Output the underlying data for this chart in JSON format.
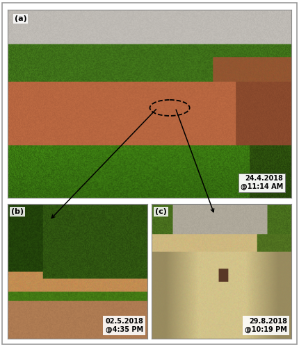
{
  "label_a": "(a)",
  "label_b": "(b)",
  "label_c": "(c)",
  "date_a": "24.4.2018\n@11:14 AM",
  "date_b": "02.5.2018\n@4:35 PM",
  "date_c": "29.8.2018\n@10:19 PM",
  "border_color": "#888888",
  "text_color": "#000000",
  "bg_color": "#ffffff",
  "label_fontsize": 8,
  "date_fontsize": 7,
  "fig_width": 4.3,
  "fig_height": 5.0,
  "dpi": 100
}
